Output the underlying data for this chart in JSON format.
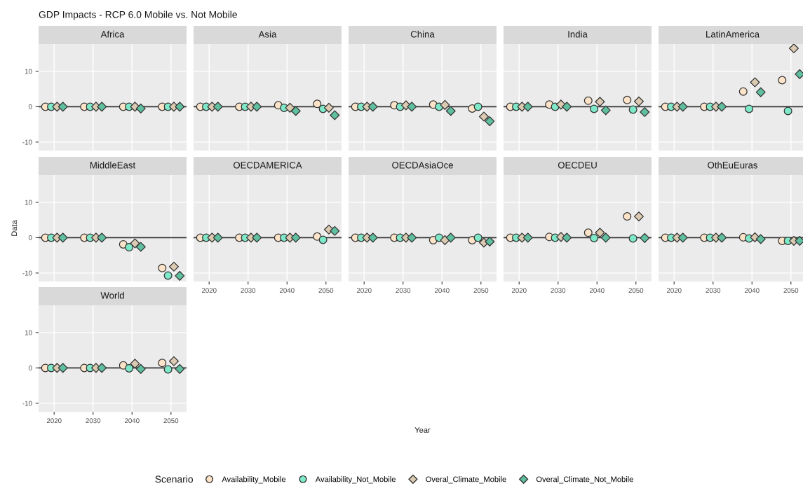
{
  "chart_data": [
    {
      "title": "GDP Impacts - RCP 6.0 Mobile vs. Not Mobile",
      "subtitle": "Africa",
      "legend": "bottom",
      "legend_title": "Scenario",
      "type": "scatter",
      "xlim": [
        2016,
        2054
      ],
      "xticks": [
        2020,
        2030,
        2040,
        2050
      ],
      "ylim": [
        -12.4,
        17.7
      ],
      "yticks": [
        -10,
        0,
        10
      ],
      "grid": true,
      "tick_labels": "y",
      "ref_lines": [
        {
          "axis": "y",
          "value": 0,
          "color": "#333333"
        }
      ],
      "series": [
        {
          "name": "Availability_Mobile",
          "color": "#fde3c8",
          "marker": "circle",
          "x": [
            2017.75,
            2027.75,
            2037.75,
            2047.75
          ],
          "values": [
            0,
            0,
            0,
            0
          ]
        },
        {
          "name": "Availability_Not_Mobile",
          "color": "#7ee8c8",
          "marker": "circle",
          "x": [
            2019.25,
            2029.25,
            2039.25,
            2049.25
          ],
          "values": [
            0,
            0,
            0,
            0
          ]
        },
        {
          "name": "Overal_Climate_Mobile",
          "color": "#dccbb2",
          "marker": "diamond",
          "x": [
            2020.75,
            2030.75,
            2040.75,
            2050.75
          ],
          "values": [
            0,
            0,
            0,
            0
          ]
        },
        {
          "name": "Overal_Climate_Not_Mobile",
          "color": "#5fbf9f",
          "marker": "diamond",
          "x": [
            2022.25,
            2032.25,
            2042.25,
            2052.25
          ],
          "values": [
            0,
            0,
            -0.5,
            0
          ]
        }
      ]
    },
    {
      "subtitle": "Asia",
      "type": "scatter",
      "xlim": [
        2016,
        2054
      ],
      "xticks": [
        2020,
        2030,
        2040,
        2050
      ],
      "ylim": [
        -12.4,
        17.7
      ],
      "yticks": [
        -10,
        0,
        10
      ],
      "grid": true,
      "tick_labels": false,
      "ref_lines": [
        {
          "axis": "y",
          "value": 0,
          "color": "#333333"
        }
      ],
      "series": [
        {
          "color": "#fde3c8",
          "marker": "circle",
          "x": [
            2017.75,
            2027.75,
            2037.75,
            2047.75
          ],
          "values": [
            0,
            0,
            0.4,
            0.8
          ]
        },
        {
          "color": "#7ee8c8",
          "marker": "circle",
          "x": [
            2019.25,
            2029.25,
            2039.25,
            2049.25
          ],
          "values": [
            0,
            0,
            -0.3,
            -0.6
          ]
        },
        {
          "color": "#dccbb2",
          "marker": "diamond",
          "x": [
            2020.75,
            2030.75,
            2040.75,
            2050.75
          ],
          "values": [
            0,
            0,
            -0.3,
            -0.3
          ]
        },
        {
          "color": "#5fbf9f",
          "marker": "diamond",
          "x": [
            2022.25,
            2032.25,
            2042.25,
            2052.25
          ],
          "values": [
            0,
            0,
            -1.2,
            -2.4
          ]
        }
      ]
    },
    {
      "subtitle": "China",
      "type": "scatter",
      "xlim": [
        2016,
        2054
      ],
      "xticks": [
        2020,
        2030,
        2040,
        2050
      ],
      "ylim": [
        -12.4,
        17.7
      ],
      "yticks": [
        -10,
        0,
        10
      ],
      "grid": true,
      "tick_labels": false,
      "ref_lines": [
        {
          "axis": "y",
          "value": 0,
          "color": "#333333"
        }
      ],
      "series": [
        {
          "color": "#fde3c8",
          "marker": "circle",
          "x": [
            2017.75,
            2027.75,
            2037.75,
            2047.75
          ],
          "values": [
            0,
            0.4,
            0.6,
            -0.5
          ]
        },
        {
          "color": "#7ee8c8",
          "marker": "circle",
          "x": [
            2019.25,
            2029.25,
            2039.25,
            2049.25
          ],
          "values": [
            0,
            0,
            0,
            0
          ]
        },
        {
          "color": "#dccbb2",
          "marker": "diamond",
          "x": [
            2020.75,
            2030.75,
            2040.75,
            2050.75
          ],
          "values": [
            0,
            0.4,
            0.5,
            -2.8
          ]
        },
        {
          "color": "#5fbf9f",
          "marker": "diamond",
          "x": [
            2022.25,
            2032.25,
            2042.25,
            2052.25
          ],
          "values": [
            0,
            0,
            -1.2,
            -4.1
          ]
        }
      ]
    },
    {
      "subtitle": "India",
      "type": "scatter",
      "xlim": [
        2016,
        2054
      ],
      "xticks": [
        2020,
        2030,
        2040,
        2050
      ],
      "ylim": [
        -12.4,
        17.7
      ],
      "yticks": [
        -10,
        0,
        10
      ],
      "grid": true,
      "tick_labels": false,
      "ref_lines": [
        {
          "axis": "y",
          "value": 0,
          "color": "#333333"
        }
      ],
      "series": [
        {
          "color": "#fde3c8",
          "marker": "circle",
          "x": [
            2017.75,
            2027.75,
            2037.75,
            2047.75
          ],
          "values": [
            0,
            0.6,
            1.7,
            1.9
          ]
        },
        {
          "color": "#7ee8c8",
          "marker": "circle",
          "x": [
            2019.25,
            2029.25,
            2039.25,
            2049.25
          ],
          "values": [
            0,
            0,
            -0.6,
            -0.8
          ]
        },
        {
          "color": "#dccbb2",
          "marker": "diamond",
          "x": [
            2020.75,
            2030.75,
            2040.75,
            2050.75
          ],
          "values": [
            0,
            0.6,
            1.4,
            1.5
          ]
        },
        {
          "color": "#5fbf9f",
          "marker": "diamond",
          "x": [
            2022.25,
            2032.25,
            2042.25,
            2052.25
          ],
          "values": [
            0,
            0,
            -1.0,
            -1.5
          ]
        }
      ]
    },
    {
      "subtitle": "LatinAmerica",
      "type": "scatter",
      "xlim": [
        2016,
        2054
      ],
      "xticks": [
        2020,
        2030,
        2040,
        2050
      ],
      "ylim": [
        -12.4,
        17.7
      ],
      "yticks": [
        -10,
        0,
        10
      ],
      "grid": true,
      "tick_labels": false,
      "ref_lines": [
        {
          "axis": "y",
          "value": 0,
          "color": "#333333"
        }
      ],
      "series": [
        {
          "color": "#fde3c8",
          "marker": "circle",
          "x": [
            2017.75,
            2027.75,
            2037.75,
            2047.75
          ],
          "values": [
            0,
            0,
            4.3,
            7.5
          ]
        },
        {
          "color": "#7ee8c8",
          "marker": "circle",
          "x": [
            2019.25,
            2029.25,
            2039.25,
            2049.25
          ],
          "values": [
            0,
            0,
            -0.6,
            -1.2
          ]
        },
        {
          "color": "#dccbb2",
          "marker": "diamond",
          "x": [
            2020.75,
            2030.75,
            2040.75,
            2050.75
          ],
          "values": [
            0,
            0,
            6.9,
            16.5
          ]
        },
        {
          "color": "#5fbf9f",
          "marker": "diamond",
          "x": [
            2022.25,
            2032.25,
            2042.25,
            2052.25
          ],
          "values": [
            0,
            0,
            4.1,
            9.2
          ]
        }
      ]
    },
    {
      "subtitle": "MiddleEast",
      "ylabel": "Data",
      "type": "scatter",
      "xlim": [
        2016,
        2054
      ],
      "xticks": [
        2020,
        2030,
        2040,
        2050
      ],
      "ylim": [
        -12.4,
        17.7
      ],
      "yticks": [
        -10,
        0,
        10
      ],
      "grid": true,
      "tick_labels": "y",
      "ref_lines": [
        {
          "axis": "y",
          "value": 0,
          "color": "#333333"
        }
      ],
      "series": [
        {
          "color": "#fde3c8",
          "marker": "circle",
          "x": [
            2017.75,
            2027.75,
            2037.75,
            2047.75
          ],
          "values": [
            0,
            0,
            -1.9,
            -8.6
          ]
        },
        {
          "color": "#7ee8c8",
          "marker": "circle",
          "x": [
            2019.25,
            2029.25,
            2039.25,
            2049.25
          ],
          "values": [
            0,
            0,
            -2.7,
            -10.7
          ]
        },
        {
          "color": "#dccbb2",
          "marker": "diamond",
          "x": [
            2020.75,
            2030.75,
            2040.75,
            2050.75
          ],
          "values": [
            0,
            0,
            -1.6,
            -8.2
          ]
        },
        {
          "color": "#5fbf9f",
          "marker": "diamond",
          "x": [
            2022.25,
            2032.25,
            2042.25,
            2052.25
          ],
          "values": [
            0,
            0,
            -2.6,
            -10.8
          ]
        }
      ]
    },
    {
      "subtitle": "OECDAMERICA",
      "type": "scatter",
      "xlim": [
        2016,
        2054
      ],
      "xticks": [
        2020,
        2030,
        2040,
        2050
      ],
      "ylim": [
        -12.4,
        17.7
      ],
      "yticks": [
        -10,
        0,
        10
      ],
      "grid": true,
      "tick_labels": "x",
      "ref_lines": [
        {
          "axis": "y",
          "value": 0,
          "color": "#333333"
        }
      ],
      "series": [
        {
          "color": "#fde3c8",
          "marker": "circle",
          "x": [
            2017.75,
            2027.75,
            2037.75,
            2047.75
          ],
          "values": [
            0,
            0,
            0,
            0.3
          ]
        },
        {
          "color": "#7ee8c8",
          "marker": "circle",
          "x": [
            2019.25,
            2029.25,
            2039.25,
            2049.25
          ],
          "values": [
            0,
            0,
            0,
            -0.6
          ]
        },
        {
          "color": "#dccbb2",
          "marker": "diamond",
          "x": [
            2020.75,
            2030.75,
            2040.75,
            2050.75
          ],
          "values": [
            0,
            0,
            0,
            2.3
          ]
        },
        {
          "color": "#5fbf9f",
          "marker": "diamond",
          "x": [
            2022.25,
            2032.25,
            2042.25,
            2052.25
          ],
          "values": [
            0,
            0,
            0,
            1.9
          ]
        }
      ]
    },
    {
      "subtitle": "OECDAsiaOce",
      "xlabel": "Year",
      "type": "scatter",
      "xlim": [
        2016,
        2054
      ],
      "xticks": [
        2020,
        2030,
        2040,
        2050
      ],
      "ylim": [
        -12.4,
        17.7
      ],
      "yticks": [
        -10,
        0,
        10
      ],
      "grid": true,
      "tick_labels": "x",
      "ref_lines": [
        {
          "axis": "y",
          "value": 0,
          "color": "#333333"
        }
      ],
      "series": [
        {
          "color": "#fde3c8",
          "marker": "circle",
          "x": [
            2017.75,
            2027.75,
            2037.75,
            2047.75
          ],
          "values": [
            0,
            0,
            -0.7,
            -0.7
          ]
        },
        {
          "color": "#7ee8c8",
          "marker": "circle",
          "x": [
            2019.25,
            2029.25,
            2039.25,
            2049.25
          ],
          "values": [
            0,
            0,
            0,
            0
          ]
        },
        {
          "color": "#dccbb2",
          "marker": "diamond",
          "x": [
            2020.75,
            2030.75,
            2040.75,
            2050.75
          ],
          "values": [
            0,
            0,
            -0.7,
            -1.4
          ]
        },
        {
          "color": "#5fbf9f",
          "marker": "diamond",
          "x": [
            2022.25,
            2032.25,
            2042.25,
            2052.25
          ],
          "values": [
            0,
            0,
            0,
            -1.1
          ]
        }
      ]
    },
    {
      "subtitle": "OECDEU",
      "type": "scatter",
      "xlim": [
        2016,
        2054
      ],
      "xticks": [
        2020,
        2030,
        2040,
        2050
      ],
      "ylim": [
        -12.4,
        17.7
      ],
      "yticks": [
        -10,
        0,
        10
      ],
      "grid": true,
      "tick_labels": "x",
      "ref_lines": [
        {
          "axis": "y",
          "value": 0,
          "color": "#333333"
        }
      ],
      "series": [
        {
          "color": "#fde3c8",
          "marker": "circle",
          "x": [
            2017.75,
            2027.75,
            2037.75,
            2047.75
          ],
          "values": [
            0,
            0.2,
            1.4,
            6.0
          ]
        },
        {
          "color": "#7ee8c8",
          "marker": "circle",
          "x": [
            2019.25,
            2029.25,
            2039.25,
            2049.25
          ],
          "values": [
            0,
            0,
            -0.1,
            -0.2
          ]
        },
        {
          "color": "#dccbb2",
          "marker": "diamond",
          "x": [
            2020.75,
            2030.75,
            2040.75,
            2050.75
          ],
          "values": [
            0,
            0.2,
            1.4,
            6.0
          ]
        },
        {
          "color": "#5fbf9f",
          "marker": "diamond",
          "x": [
            2022.25,
            2032.25,
            2042.25,
            2052.25
          ],
          "values": [
            0,
            0,
            0,
            -0.1
          ]
        }
      ]
    },
    {
      "subtitle": "OthEuEuras",
      "type": "scatter",
      "xlim": [
        2016,
        2054
      ],
      "xticks": [
        2020,
        2030,
        2040,
        2050
      ],
      "ylim": [
        -12.4,
        17.7
      ],
      "yticks": [
        -10,
        0,
        10
      ],
      "grid": true,
      "tick_labels": "x",
      "ref_lines": [
        {
          "axis": "y",
          "value": 0,
          "color": "#333333"
        }
      ],
      "series": [
        {
          "color": "#fde3c8",
          "marker": "circle",
          "x": [
            2017.75,
            2027.75,
            2037.75,
            2047.75
          ],
          "values": [
            0,
            0,
            0.1,
            -0.9
          ]
        },
        {
          "color": "#7ee8c8",
          "marker": "circle",
          "x": [
            2019.25,
            2029.25,
            2039.25,
            2049.25
          ],
          "values": [
            0,
            0,
            -0.2,
            -0.9
          ]
        },
        {
          "color": "#dccbb2",
          "marker": "diamond",
          "x": [
            2020.75,
            2030.75,
            2040.75,
            2050.75
          ],
          "values": [
            0,
            0,
            0.1,
            -0.9
          ]
        },
        {
          "color": "#5fbf9f",
          "marker": "diamond",
          "x": [
            2022.25,
            2032.25,
            2042.25,
            2052.25
          ],
          "values": [
            0,
            0,
            -0.4,
            -0.9
          ]
        }
      ]
    },
    {
      "subtitle": "World",
      "type": "scatter",
      "xlim": [
        2016,
        2054
      ],
      "xticks": [
        2020,
        2030,
        2040,
        2050
      ],
      "ylim": [
        -12.4,
        17.7
      ],
      "yticks": [
        -10,
        0,
        10
      ],
      "grid": true,
      "ref_lines": [
        {
          "axis": "y",
          "value": 0,
          "color": "#333333"
        }
      ],
      "series": [
        {
          "color": "#fde3c8",
          "marker": "circle",
          "x": [
            2017.75,
            2027.75,
            2037.75,
            2047.75
          ],
          "values": [
            0,
            0,
            0.7,
            1.4
          ]
        },
        {
          "color": "#7ee8c8",
          "marker": "circle",
          "x": [
            2019.25,
            2029.25,
            2039.25,
            2049.25
          ],
          "values": [
            0,
            0,
            -0.1,
            -0.4
          ]
        },
        {
          "color": "#dccbb2",
          "marker": "diamond",
          "x": [
            2020.75,
            2030.75,
            2040.75,
            2050.75
          ],
          "values": [
            0,
            0,
            1.2,
            1.9
          ]
        },
        {
          "color": "#5fbf9f",
          "marker": "diamond",
          "x": [
            2022.25,
            2032.25,
            2042.25,
            2052.25
          ],
          "values": [
            0,
            0,
            -0.3,
            -0.3
          ]
        }
      ]
    }
  ]
}
